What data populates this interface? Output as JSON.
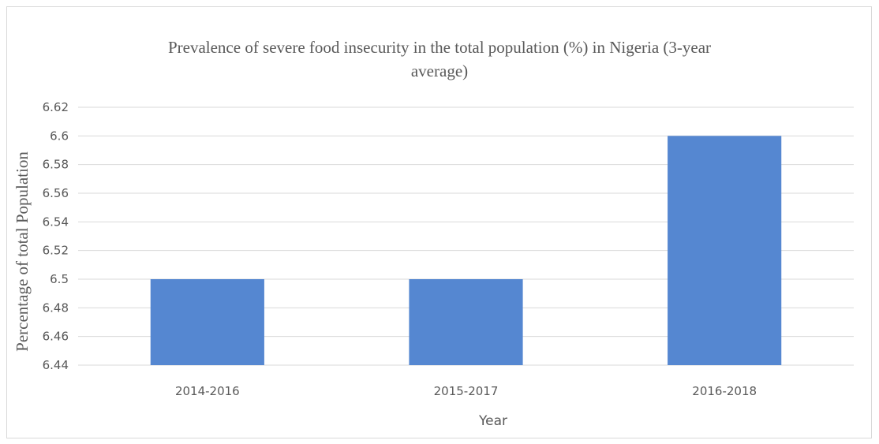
{
  "chart_data": {
    "type": "bar",
    "title": "Prevalence of severe food insecurity in the total population (%) in Nigeria (3-year average)",
    "title_lines": [
      "Prevalence of severe food insecurity in the total population (%) in Nigeria (3-year",
      "average)"
    ],
    "xlabel": "Year",
    "ylabel": "Percentage of total Population",
    "categories": [
      "2014-2016",
      "2015-2017",
      "2016-2018"
    ],
    "values": [
      6.5,
      6.5,
      6.6
    ],
    "ylim": [
      6.44,
      6.62
    ],
    "yticks": [
      "6.44",
      "6.46",
      "6.48",
      "6.5",
      "6.52",
      "6.54",
      "6.56",
      "6.58",
      "6.6",
      "6.62"
    ],
    "bar_color": "#5587d1",
    "grid": true,
    "legend": "none"
  }
}
